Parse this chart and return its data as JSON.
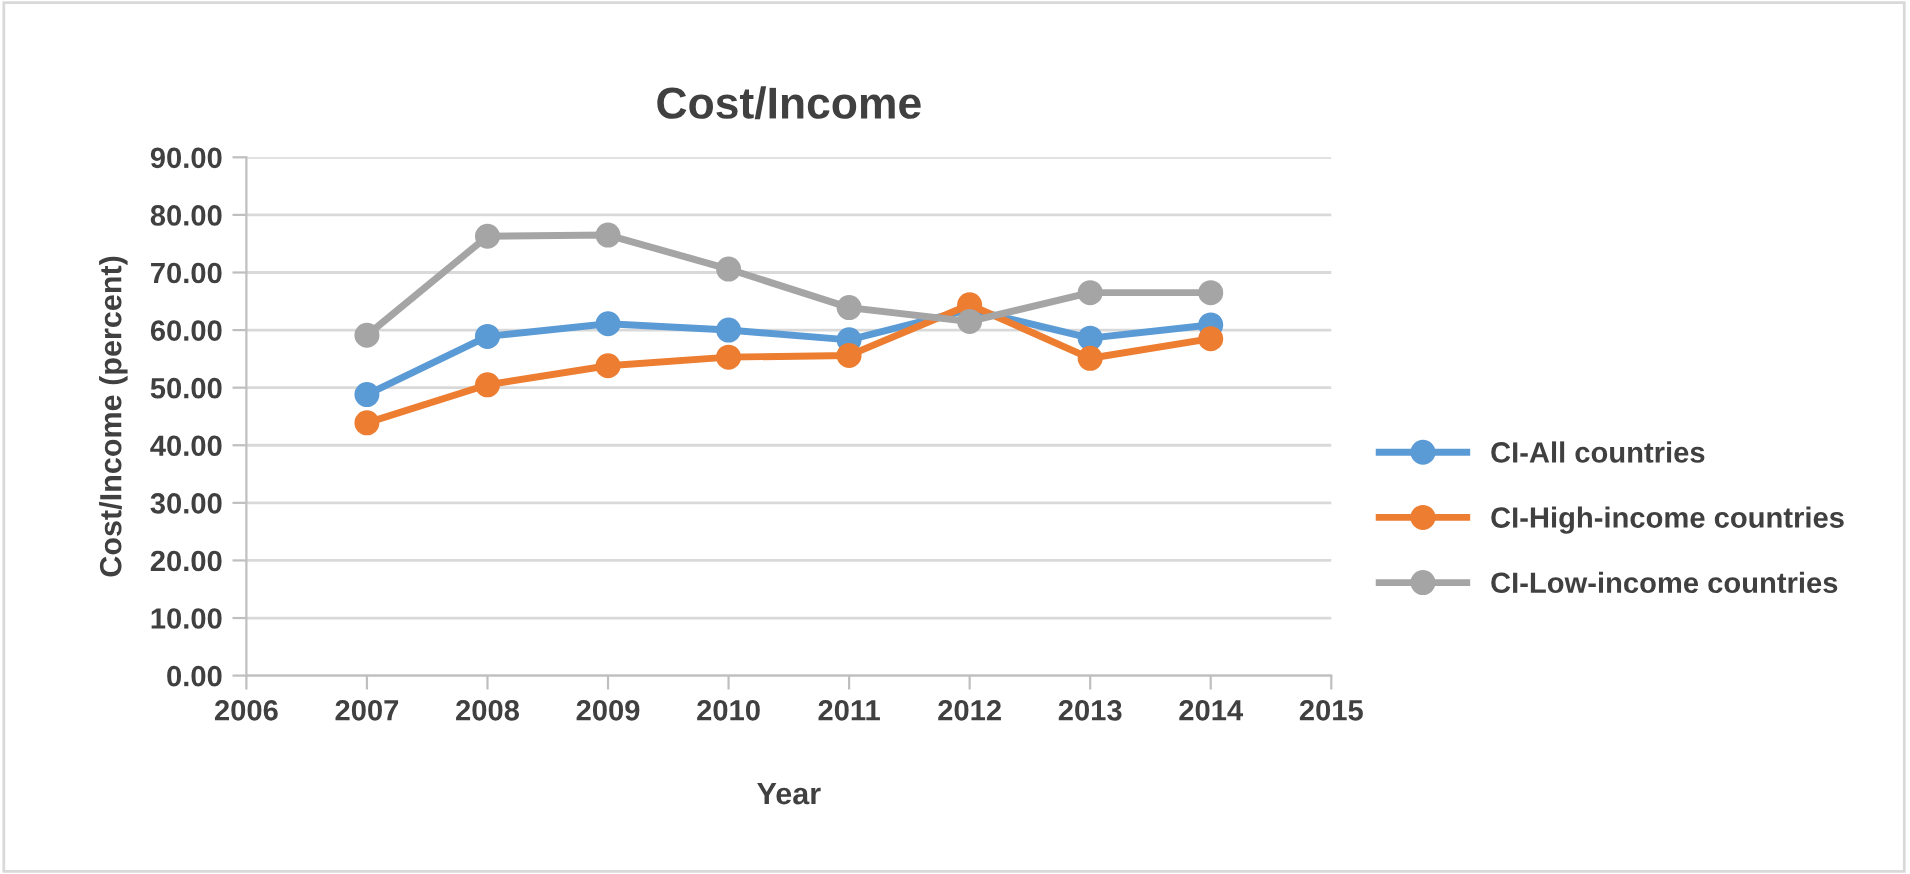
{
  "chart_data": {
    "type": "line",
    "title": "Cost/Income",
    "xlabel": "Year",
    "ylabel": "Cost/Income (percent)",
    "x": [
      2007,
      2008,
      2009,
      2010,
      2011,
      2012,
      2013,
      2014
    ],
    "series": [
      {
        "name": "CI-All countries",
        "color": "#5b9bd5",
        "values": [
          48.8,
          58.9,
          61.1,
          60.0,
          58.3,
          63.6,
          58.6,
          60.9
        ]
      },
      {
        "name": "CI-High-income countries",
        "color": "#ed7d31",
        "values": [
          43.9,
          50.5,
          53.8,
          55.3,
          55.6,
          64.4,
          55.1,
          58.5
        ]
      },
      {
        "name": "CI-Low-income countries",
        "color": "#a5a5a5",
        "values": [
          59.1,
          76.3,
          76.5,
          70.6,
          63.9,
          61.5,
          66.5,
          66.5
        ]
      }
    ],
    "xlim": [
      2006,
      2015
    ],
    "xticks": [
      2006,
      2007,
      2008,
      2009,
      2010,
      2011,
      2012,
      2013,
      2014,
      2015
    ],
    "ylim": [
      0,
      90
    ],
    "yticks": [
      {
        "value": 0,
        "label": "0.00"
      },
      {
        "value": 10,
        "label": "10.00"
      },
      {
        "value": 20,
        "label": "20.00"
      },
      {
        "value": 30,
        "label": "30.00"
      },
      {
        "value": 40,
        "label": "40.00"
      },
      {
        "value": 50,
        "label": "50.00"
      },
      {
        "value": 60,
        "label": "60.00"
      },
      {
        "value": 70,
        "label": "70.00"
      },
      {
        "value": 80,
        "label": "80.00"
      },
      {
        "value": 90,
        "label": "90.00"
      }
    ],
    "grid": "y",
    "legend": "right",
    "marker": "circle",
    "line_style": "solid"
  }
}
